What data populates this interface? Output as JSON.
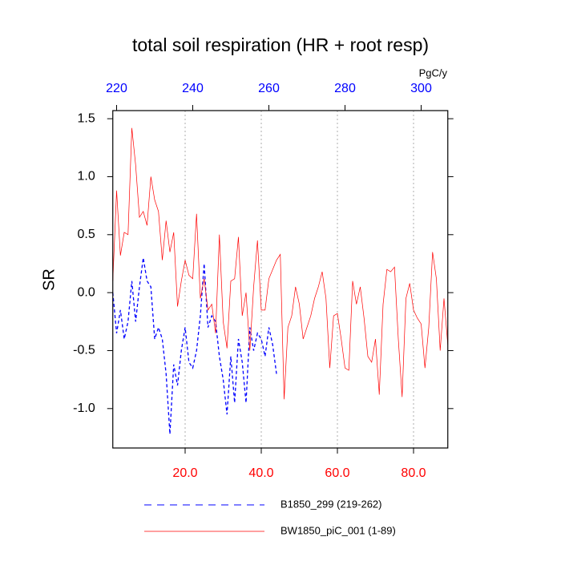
{
  "chart_data": {
    "type": "line",
    "title": "total soil respiration (HR + root resp)",
    "ylabel": "SR",
    "x2label": "PgC/y",
    "xlim": [
      1,
      89
    ],
    "xticks": [
      {
        "value": 20,
        "label": "20.0"
      },
      {
        "value": 40,
        "label": "40.0"
      },
      {
        "value": 60,
        "label": "60.0"
      },
      {
        "value": 80,
        "label": "80.0"
      }
    ],
    "xtick_color": "#ff0000",
    "x2lim": [
      219,
      307
    ],
    "x2ticks": [
      220,
      240,
      260,
      280,
      300
    ],
    "x2tick_color": "#0000ff",
    "ylim": [
      -1.34,
      1.57
    ],
    "yticks": [
      {
        "value": -1.0,
        "label": "-1.0"
      },
      {
        "value": -0.5,
        "label": "-0.5"
      },
      {
        "value": 0.0,
        "label": "0.0"
      },
      {
        "value": 0.5,
        "label": "0.5"
      },
      {
        "value": 1.0,
        "label": "1.0"
      },
      {
        "value": 1.5,
        "label": "1.5"
      }
    ],
    "grid": "x",
    "series": [
      {
        "name": "B1850_299 (219-262)",
        "color": "#0000ff",
        "linestyle": "dashed",
        "x": [
          1,
          2,
          3,
          4,
          5,
          6,
          7,
          8,
          9,
          10,
          11,
          12,
          13,
          14,
          15,
          16,
          17,
          18,
          19,
          20,
          21,
          22,
          23,
          24,
          25,
          26,
          27,
          28,
          29,
          30,
          31,
          32,
          33,
          34,
          35,
          36,
          37,
          38,
          39,
          40,
          41,
          42,
          43,
          44
        ],
        "values": [
          0.0,
          -0.35,
          -0.15,
          -0.4,
          -0.25,
          0.1,
          -0.25,
          0.05,
          0.3,
          0.1,
          0.05,
          -0.4,
          -0.3,
          -0.4,
          -0.7,
          -1.22,
          -0.62,
          -0.8,
          -0.5,
          -0.3,
          -0.6,
          -0.65,
          -0.5,
          -0.2,
          0.25,
          -0.3,
          -0.2,
          -0.25,
          -0.55,
          -0.75,
          -1.05,
          -0.55,
          -0.95,
          -0.4,
          -0.6,
          -0.95,
          -0.3,
          -0.5,
          -0.35,
          -0.4,
          -0.55,
          -0.3,
          -0.45,
          -0.7
        ]
      },
      {
        "name": "BW1850_piC_001 (1-89)",
        "color": "#ff0000",
        "linestyle": "solid",
        "x": [
          1,
          2,
          3,
          4,
          5,
          6,
          7,
          8,
          9,
          10,
          11,
          12,
          13,
          14,
          15,
          16,
          17,
          18,
          19,
          20,
          21,
          22,
          23,
          24,
          25,
          26,
          27,
          28,
          29,
          30,
          31,
          32,
          33,
          34,
          35,
          36,
          37,
          38,
          39,
          40,
          41,
          42,
          43,
          44,
          45,
          46,
          47,
          48,
          49,
          50,
          51,
          52,
          53,
          54,
          55,
          56,
          57,
          58,
          59,
          60,
          61,
          62,
          63,
          64,
          65,
          66,
          67,
          68,
          69,
          70,
          71,
          72,
          73,
          74,
          75,
          76,
          77,
          78,
          79,
          80,
          81,
          82,
          83,
          84,
          85,
          86,
          87,
          88,
          89
        ],
        "values": [
          0.1,
          0.88,
          0.32,
          0.52,
          0.5,
          1.42,
          1.1,
          0.65,
          0.7,
          0.58,
          1.0,
          0.8,
          0.7,
          0.28,
          0.62,
          0.35,
          0.52,
          -0.12,
          0.1,
          0.28,
          0.15,
          0.12,
          0.68,
          -0.05,
          0.12,
          -0.15,
          -0.1,
          -0.35,
          0.5,
          -0.25,
          -0.48,
          0.1,
          0.12,
          0.48,
          -0.2,
          0.0,
          -0.5,
          0.05,
          0.45,
          -0.15,
          -0.15,
          0.12,
          0.2,
          0.28,
          0.33,
          -0.92,
          -0.3,
          -0.2,
          0.05,
          -0.1,
          -0.4,
          -0.3,
          -0.2,
          -0.05,
          0.05,
          0.18,
          -0.05,
          -0.65,
          -0.2,
          -0.18,
          -0.4,
          -0.65,
          -0.67,
          0.1,
          -0.1,
          0.05,
          -0.22,
          -0.55,
          -0.6,
          -0.4,
          -0.88,
          -0.1,
          0.2,
          0.18,
          0.22,
          -0.4,
          -0.9,
          -0.05,
          0.08,
          -0.15,
          -0.22,
          -0.27,
          -0.65,
          -0.3,
          0.35,
          0.12,
          -0.5,
          -0.05,
          -0.45
        ]
      }
    ]
  }
}
